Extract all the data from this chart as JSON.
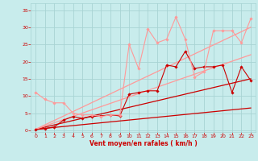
{
  "background_color": "#c8ecec",
  "grid_color": "#a8d4d4",
  "line_color_dark": "#cc0000",
  "line_color_light": "#ff8888",
  "xlabel": "Vent moyen/en rafales ( km/h )",
  "xlabel_color": "#cc0000",
  "ylabel_ticks": [
    0,
    5,
    10,
    15,
    20,
    25,
    30,
    35
  ],
  "xlim": [
    -0.5,
    23.5
  ],
  "ylim": [
    -0.5,
    37
  ],
  "x_ticks": [
    0,
    1,
    2,
    3,
    4,
    5,
    6,
    7,
    8,
    9,
    10,
    11,
    12,
    13,
    14,
    15,
    16,
    17,
    18,
    19,
    20,
    21,
    22,
    23
  ],
  "series": [
    {
      "x": [
        0,
        23
      ],
      "y": [
        0.3,
        6.5
      ],
      "color": "#cc0000",
      "lw": 0.9,
      "marker": null,
      "ms": 0,
      "zorder": 2
    },
    {
      "x": [
        0,
        23
      ],
      "y": [
        0.3,
        15.0
      ],
      "color": "#cc0000",
      "lw": 0.9,
      "marker": null,
      "ms": 0,
      "zorder": 2
    },
    {
      "x": [
        0,
        23
      ],
      "y": [
        0.3,
        22.0
      ],
      "color": "#ff9999",
      "lw": 0.9,
      "marker": null,
      "ms": 0,
      "zorder": 2
    },
    {
      "x": [
        0,
        23
      ],
      "y": [
        0.3,
        30.0
      ],
      "color": "#ff9999",
      "lw": 0.9,
      "marker": null,
      "ms": 0,
      "zorder": 2
    },
    {
      "x": [
        0,
        1,
        2,
        3,
        4,
        5,
        6,
        7,
        8,
        9,
        10,
        11,
        12,
        13,
        14,
        15,
        16,
        17,
        18,
        19,
        20,
        21,
        22,
        23
      ],
      "y": [
        0.2,
        0.5,
        1.0,
        3.0,
        4.0,
        3.5,
        4.0,
        4.2,
        4.5,
        4.2,
        10.5,
        11.0,
        11.5,
        11.5,
        19.0,
        18.5,
        23.0,
        18.0,
        18.5,
        18.5,
        19.0,
        11.0,
        18.5,
        14.5
      ],
      "color": "#cc0000",
      "lw": 0.8,
      "marker": "D",
      "ms": 1.8,
      "zorder": 3
    },
    {
      "x": [
        0,
        1,
        2,
        3,
        4,
        5,
        6,
        7,
        8,
        9,
        10,
        11,
        12,
        13,
        14,
        15,
        16,
        17,
        18,
        19,
        20,
        21,
        22,
        23
      ],
      "y": [
        11.0,
        9.0,
        8.0,
        8.0,
        5.0,
        4.5,
        4.5,
        4.0,
        4.5,
        4.5,
        25.0,
        18.0,
        29.5,
        25.5,
        26.5,
        33.0,
        26.5,
        15.5,
        17.0,
        29.0,
        29.0,
        29.0,
        25.5,
        32.5
      ],
      "color": "#ff9999",
      "lw": 0.8,
      "marker": "D",
      "ms": 1.8,
      "zorder": 3
    }
  ]
}
